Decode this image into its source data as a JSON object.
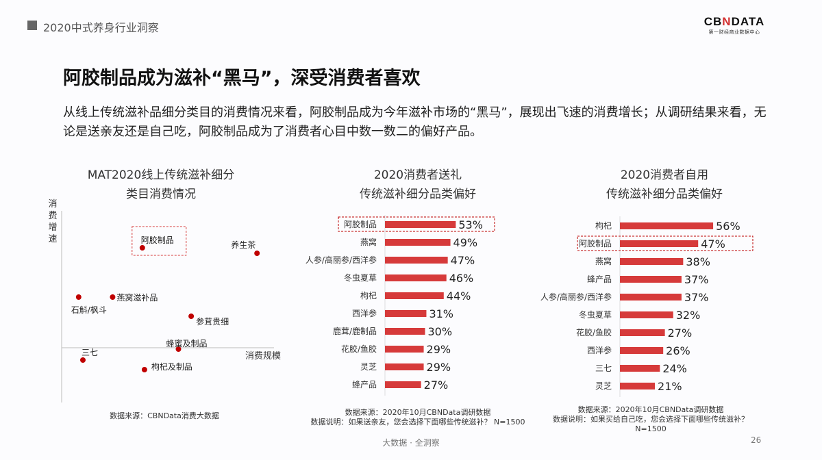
{
  "header": {
    "section": "2020中式养身行业洞察",
    "logo_main": "CBNDATA",
    "logo_sub": "第一财经商业数据中心"
  },
  "title": "阿胶制品成为滋补“黑马”，深受消费者喜欢",
  "description": "从线上传统滋补品细分类目的消费情况来看，阿胶制品成为今年滋补市场的“黑马”，展现出飞速的消费增长；从调研结果来看，无论是送亲友还是自己吃，阿胶制品成为了消费者心目中数一数二的偏好产品。",
  "footer": {
    "slogan": "大数据 · 全洞察",
    "page": "26"
  },
  "accent": "#d63a3a",
  "chart_data": [
    {
      "type": "scatter",
      "title": "MAT2020线上传统滋补细分类目消费情况",
      "title_lines": [
        "MAT2020线上传统滋补细分",
        "类目消费情况"
      ],
      "xlabel": "消费规模",
      "ylabel": "消费增速",
      "xlim": [
        0,
        100
      ],
      "ylim": [
        -40,
        100
      ],
      "highlight": "阿胶制品",
      "points": [
        {
          "label": "阿胶制品",
          "x": 38,
          "y": 73
        },
        {
          "label": "养生茶",
          "x": 92,
          "y": 69
        },
        {
          "label": "石斛/枫斗",
          "x": 8,
          "y": 37
        },
        {
          "label": "燕窝滋补品",
          "x": 24,
          "y": 37
        },
        {
          "label": "参茸贵细",
          "x": 61,
          "y": 23
        },
        {
          "label": "蜂蜜及制品",
          "x": 55,
          "y": -1
        },
        {
          "label": "三七",
          "x": 10,
          "y": -9
        },
        {
          "label": "枸杞及制品",
          "x": 39,
          "y": -16
        }
      ],
      "notes": [
        "数据来源：CBNData消费大数据"
      ]
    },
    {
      "type": "bar",
      "orientation": "horizontal",
      "title_lines": [
        "2020消费者送礼",
        "传统滋补细分品类偏好"
      ],
      "highlight": "阿胶制品",
      "unit": "%",
      "categories": [
        "阿胶制品",
        "燕窝",
        "人参/高丽参/西洋参",
        "冬虫夏草",
        "枸杞",
        "西洋参",
        "鹿茸/鹿制品",
        "花胶/鱼胶",
        "灵芝",
        "蜂产品"
      ],
      "values": [
        53,
        49,
        47,
        46,
        44,
        31,
        30,
        29,
        29,
        27
      ],
      "notes": [
        "数据来源：2020年10月CBNData调研数据",
        "数据说明：如果送亲友，您会选择下面哪些传统滋补？ N=1500"
      ]
    },
    {
      "type": "bar",
      "orientation": "horizontal",
      "title_lines": [
        "2020消费者自用",
        "传统滋补细分品类偏好"
      ],
      "highlight": "阿胶制品",
      "unit": "%",
      "categories": [
        "枸杞",
        "阿胶制品",
        "燕窝",
        "蜂产品",
        "人参/高丽参/西洋参",
        "冬虫夏草",
        "花胶/鱼胶",
        "西洋参",
        "三七",
        "灵芝"
      ],
      "values": [
        56,
        47,
        38,
        37,
        37,
        32,
        27,
        26,
        24,
        21
      ],
      "notes": [
        "数据来源：2020年10月CBNData调研数据",
        "数据说明：如果买给自己吃，您会选择下面哪些传统滋补？",
        "N=1500"
      ]
    }
  ]
}
